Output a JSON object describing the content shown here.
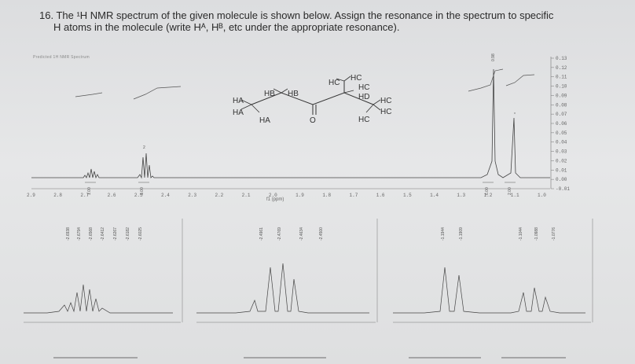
{
  "question": {
    "line1": "16. The ¹H NMR spectrum of the given molecule is shown below. Assign the resonance in the spectrum to specific",
    "line2": "H atoms in the molecule (write Hᴬ, Hᴮ, etc under the appropriate resonance)."
  },
  "spectrum": {
    "header": "Predicted 1H NMR Spectrum",
    "xlabel": "f1 (ppm)",
    "x_ticks": [
      "2.9",
      "2.8",
      "2.7",
      "2.6",
      "2.5",
      "2.4",
      "2.3",
      "2.2",
      "2.1",
      "2.0",
      "1.9",
      "1.8",
      "1.7",
      "1.6",
      "1.5",
      "1.4",
      "1.3",
      "1.2",
      "1.1",
      "1.0"
    ],
    "y_ticks": [
      "0.13",
      "0.12",
      "0.11",
      "0.10",
      "0.09",
      "0.08",
      "0.07",
      "0.06",
      "0.05",
      "0.04",
      "0.03",
      "0.02",
      "0.01",
      "0.00",
      "-0.01"
    ],
    "integrals": [
      "1.00",
      "1.00",
      "6.00",
      "2.00"
    ],
    "top_peak_label": "0.98",
    "small_labels": [
      "2",
      "*"
    ]
  },
  "molecule": {
    "labels": [
      "HB",
      "HB",
      "HA",
      "HA",
      "HA",
      "HC",
      "HC",
      "HC",
      "HD",
      "HC",
      "HC",
      "HC",
      "O"
    ]
  },
  "zoom_panels": [
    {
      "peaks": [
        "-2.6938",
        "-2.6794",
        "-2.6568",
        "-2.6412",
        "-2.6267",
        "-2.6182",
        "-2.6025"
      ]
    },
    {
      "peaks": [
        "-2.4961",
        "-2.4769",
        "-2.4634",
        "-2.4500"
      ]
    },
    {
      "peaks": [
        "-1.1944",
        "-1.1909",
        "-1.1044",
        "-1.0988",
        "-1.0776"
      ]
    }
  ],
  "colors": {
    "ink": "#333333",
    "paper": "#e1e2e3"
  }
}
